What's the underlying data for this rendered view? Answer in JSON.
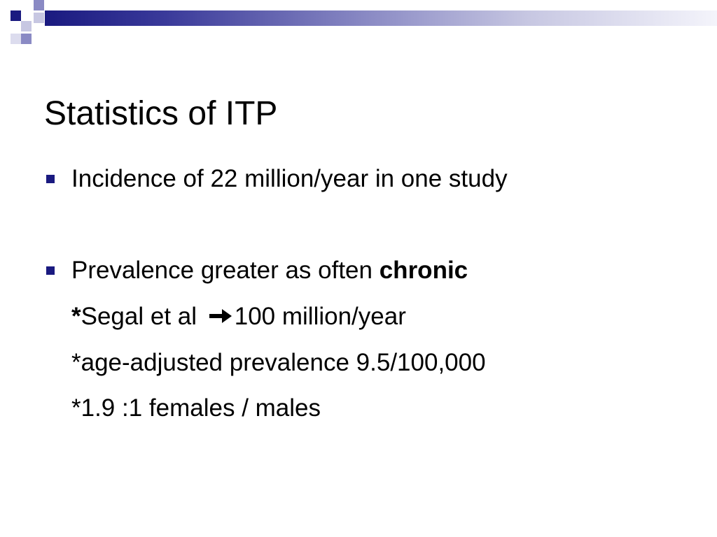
{
  "slide": {
    "title": "Statistics of ITP",
    "bullets": [
      {
        "text": "Incidence of 22 million/year in one study"
      },
      {
        "text_prefix": "Prevalence greater as often ",
        "text_bold": "chronic"
      }
    ],
    "sub_lines": [
      {
        "star": "*",
        "before_arrow": "Segal et al ",
        "arrow_icon": "right-arrow-icon",
        "after_arrow": "100 million/year"
      },
      {
        "text": "*age-adjusted prevalence 9.5/100,000"
      },
      {
        "text": "*1.9 :1 females / males"
      }
    ]
  },
  "colors": {
    "accent": "#1a1a80",
    "band_light": "#c7c7e2",
    "text": "#000000",
    "background": "#ffffff"
  }
}
